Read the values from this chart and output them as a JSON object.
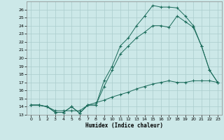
{
  "bg_color": "#cce8e8",
  "grid_color": "#aacccc",
  "line_color": "#1a6b5a",
  "xlabel": "Humidex (Indice chaleur)",
  "xlim": [
    -0.5,
    23.5
  ],
  "ylim": [
    13,
    27
  ],
  "yticks": [
    13,
    14,
    15,
    16,
    17,
    18,
    19,
    20,
    21,
    22,
    23,
    24,
    25,
    26
  ],
  "xticks": [
    0,
    1,
    2,
    3,
    4,
    5,
    6,
    7,
    8,
    9,
    10,
    11,
    12,
    13,
    14,
    15,
    16,
    17,
    18,
    19,
    20,
    21,
    22,
    23
  ],
  "line1_x": [
    0,
    1,
    2,
    3,
    4,
    5,
    6,
    7,
    8,
    9,
    10,
    11,
    12,
    13,
    14,
    15,
    16,
    17,
    18,
    19,
    20,
    21,
    22,
    23
  ],
  "line1_y": [
    14.2,
    14.2,
    14.0,
    13.3,
    13.3,
    14.0,
    13.2,
    14.2,
    14.2,
    17.2,
    19.0,
    21.5,
    22.5,
    24.0,
    25.2,
    26.5,
    26.3,
    26.3,
    26.2,
    25.2,
    24.0,
    21.5,
    18.5,
    17.0
  ],
  "line2_x": [
    0,
    1,
    2,
    3,
    4,
    5,
    6,
    7,
    8,
    9,
    10,
    11,
    12,
    13,
    14,
    15,
    16,
    17,
    18,
    19,
    20,
    21,
    22,
    23
  ],
  "line2_y": [
    14.2,
    14.2,
    14.0,
    13.3,
    13.3,
    14.0,
    13.2,
    14.2,
    14.2,
    16.5,
    18.5,
    20.5,
    21.5,
    22.5,
    23.2,
    24.0,
    24.0,
    23.8,
    25.2,
    24.5,
    23.8,
    21.5,
    18.5,
    17.0
  ],
  "line3_x": [
    0,
    1,
    2,
    3,
    4,
    5,
    6,
    7,
    8,
    9,
    10,
    11,
    12,
    13,
    14,
    15,
    16,
    17,
    18,
    19,
    20,
    21,
    22,
    23
  ],
  "line3_y": [
    14.2,
    14.2,
    14.0,
    13.5,
    13.5,
    13.5,
    13.5,
    14.2,
    14.5,
    14.8,
    15.2,
    15.5,
    15.8,
    16.2,
    16.5,
    16.8,
    17.0,
    17.2,
    17.0,
    17.0,
    17.2,
    17.2,
    17.2,
    17.0
  ]
}
